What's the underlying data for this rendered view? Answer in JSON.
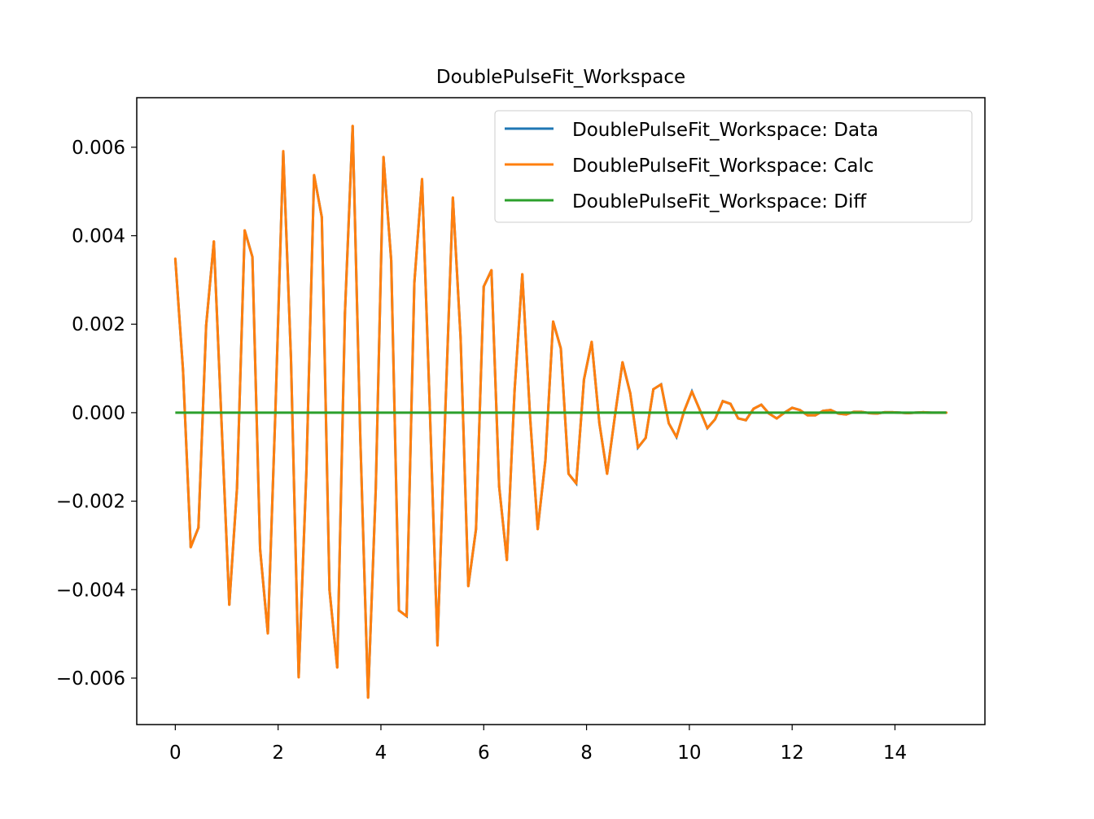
{
  "chart_data": {
    "type": "line",
    "title": "DoublePulseFit_Workspace",
    "xlabel": "",
    "ylabel": "",
    "xlim": [
      -0.75,
      15.75
    ],
    "ylim": [
      -0.00705,
      0.00712
    ],
    "xticks": [
      0,
      2,
      4,
      6,
      8,
      10,
      12,
      14
    ],
    "xtick_labels": [
      "0",
      "2",
      "4",
      "6",
      "8",
      "10",
      "12",
      "14"
    ],
    "yticks": [
      -0.006,
      -0.004,
      -0.002,
      0,
      0.002,
      0.004,
      0.006
    ],
    "ytick_labels": [
      "−0.006",
      "−0.004",
      "−0.002",
      "0.000",
      "0.002",
      "0.004",
      "0.006"
    ],
    "grid": false,
    "legend_position": "top-right",
    "x_start": 0,
    "x_step": 0.15,
    "series": [
      {
        "name": "DoublePulseFit_Workspace: Data",
        "color": "#1f77b4",
        "same_as": "DoublePulseFit_Workspace: Calc"
      },
      {
        "name": "DoublePulseFit_Workspace: Calc",
        "color": "#ff7f0e",
        "values": [
          0.00348,
          0.00096,
          -0.00304,
          -0.0026,
          0.00197,
          0.00387,
          -0.00024,
          -0.00434,
          -0.00171,
          0.00412,
          0.00352,
          -0.00309,
          -0.00499,
          0.00013,
          0.00591,
          0.00123,
          -0.00598,
          -0.00134,
          0.00537,
          0.00442,
          -0.00401,
          -0.00576,
          0.00225,
          0.00648,
          -0.00061,
          -0.00644,
          -0.00171,
          0.00578,
          0.00344,
          -0.00447,
          -0.0046,
          0.00293,
          0.00528,
          0.00013,
          -0.00526,
          -6e-05,
          0.00486,
          0.00169,
          -0.00392,
          -0.00263,
          0.00285,
          0.00322,
          -0.00167,
          -0.00333,
          0.0005,
          0.00313,
          -6e-05,
          -0.00263,
          -0.00107,
          0.00206,
          0.00145,
          -0.00138,
          -0.0016,
          0.00075,
          0.0016,
          -0.00024,
          -0.00138,
          -9e-05,
          0.00114,
          0.00044,
          -0.00079,
          -0.00057,
          0.00053,
          0.00064,
          -0.00024,
          -0.00055,
          4e-05,
          0.00048,
          7e-05,
          -0.00035,
          -0.00015,
          0.00026,
          0.0002,
          -0.00013,
          -0.00017,
          9e-05,
          0.00018,
          -2e-05,
          -0.00013,
          0,
          0.00011,
          6e-05,
          -6e-05,
          -6e-05,
          4e-05,
          6e-05,
          -2e-05,
          -4e-05,
          2e-05,
          2e-05,
          -1e-05,
          -2e-05,
          1e-05,
          1e-05,
          0,
          -1e-05,
          0,
          1e-05,
          0,
          0,
          0
        ]
      },
      {
        "name": "DoublePulseFit_Workspace: Diff",
        "color": "#2ca02c",
        "constant": 0
      }
    ]
  }
}
